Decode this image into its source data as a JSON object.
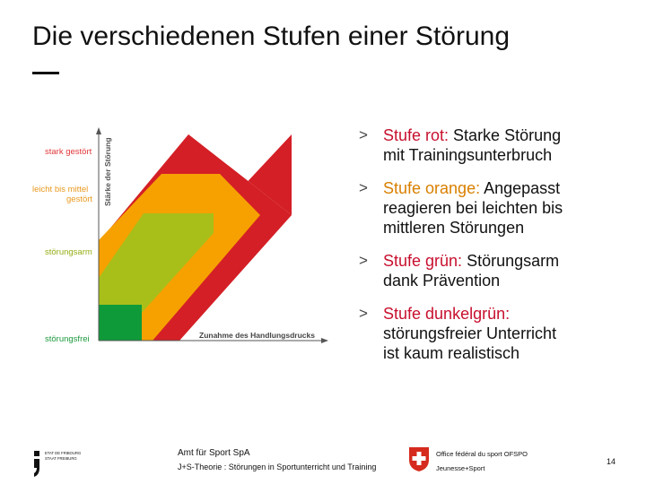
{
  "title": "Die verschiedenen Stufen einer Störung",
  "diagram": {
    "y_axis_label": "Stärke der Störung",
    "x_axis_label": "Zunahme des Handlungsdrucks",
    "levels": [
      "stark gestört",
      "leicht bis mittel",
      "gestört",
      "störungsarm",
      "störungsfrei"
    ],
    "colors": {
      "red": "#d41f26",
      "orange": "#f6a100",
      "green": "#a8bf1a",
      "darkgreen": "#0f9a3a",
      "label_red": "#e0383a"
    }
  },
  "bullets": [
    {
      "label": "Stufe rot:",
      "text_1": " Starke Störung",
      "text_2": "mit Trainingsunterbruch"
    },
    {
      "label": "Stufe orange:",
      "text_1": " Angepasst",
      "text_2": "reagieren bei leichten bis",
      "text_3": "mittleren Störungen"
    },
    {
      "label": "Stufe grün:",
      "text_1": " Störungsarm",
      "text_2": "dank Prävention"
    },
    {
      "label": "Stufe dunkelgrün:",
      "text_2": "störungsfreier Unterricht",
      "text_3": "ist kaum realistisch"
    }
  ],
  "footer": {
    "logo_line1": "ETAT DE FRIBOURG",
    "logo_line2": "STAAT FREIBURG",
    "org_name": "Amt für Sport SpA",
    "course": "J+S-Theorie : Störungen in Sportunterricht und Training",
    "office": "Office fédéral du sport OFSPO",
    "program": "Jeunesse+Sport",
    "page": "14"
  }
}
